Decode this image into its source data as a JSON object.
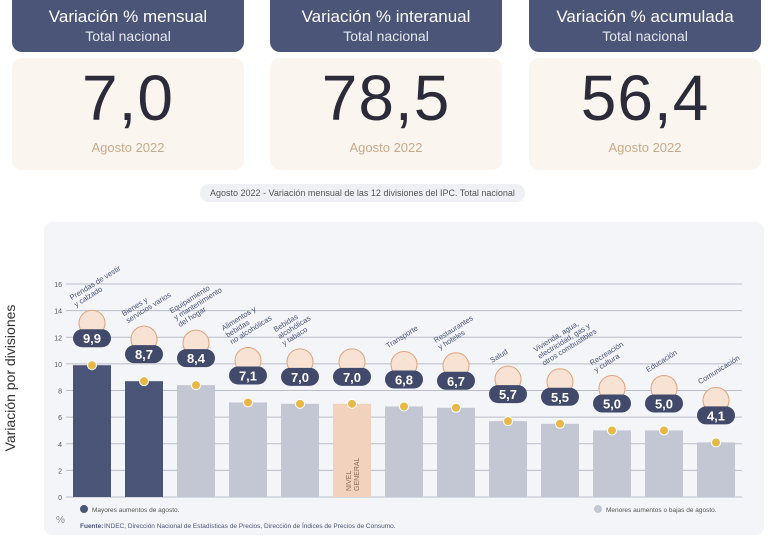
{
  "cards": [
    {
      "title": "Variación % mensual",
      "subtitle": "Total nacional",
      "value": "7,0",
      "period": "Agosto 2022"
    },
    {
      "title": "Variación % interanual",
      "subtitle": "Total nacional",
      "value": "78,5",
      "period": "Agosto 2022"
    },
    {
      "title": "Variación % acumulada",
      "subtitle": "Total nacional",
      "value": "56,4",
      "period": "Agosto 2022"
    }
  ],
  "chart_data": {
    "type": "bar",
    "title": "Agosto 2022 - Variación mensual de las 12 divisiones del IPC. Total nacional",
    "ylabel": "Variación por divisiones",
    "yunit": "%",
    "ylim": [
      0,
      16
    ],
    "yticks": [
      0,
      2,
      4,
      6,
      8,
      10,
      12,
      14,
      16
    ],
    "categories": [
      "Prendas de vestir y calzado",
      "Bienes y servicios varios",
      "Equipamiento y mantenimiento del hogar",
      "Alimentos y bebidas no alcohólicas",
      "Bebidas alcohólicas y tabaco",
      "Nivel general",
      "Transporte",
      "Restaurantes y hoteles",
      "Salud",
      "Vivienda, agua, electricidad, gas y otros combustibles",
      "Recreación y cultura",
      "Educación",
      "Comunicación"
    ],
    "values": [
      9.9,
      8.7,
      8.4,
      7.1,
      7.0,
      7.0,
      6.8,
      6.7,
      5.7,
      5.5,
      5.0,
      5.0,
      4.1
    ],
    "value_labels": [
      "9,9",
      "8,7",
      "8,4",
      "7,1",
      "7,0",
      "7,0",
      "6,8",
      "6,7",
      "5,7",
      "5,5",
      "5,0",
      "5,0",
      "4,1"
    ],
    "label_lines": [
      [
        "Prendas de vestir",
        "y calzado"
      ],
      [
        "Bienes y",
        "servicios varios"
      ],
      [
        "Equipamiento",
        "y mantenimiento",
        "del hogar"
      ],
      [
        "Alimentos y",
        "bebidas",
        "no alcohólicas"
      ],
      [
        "Bebidas",
        "alcohólicas",
        "y tabaco"
      ],
      [
        "NIVEL",
        "GENERAL"
      ],
      [
        "Transporte"
      ],
      [
        "Restaurantes",
        "y hoteles"
      ],
      [
        "Salud"
      ],
      [
        "Vivienda, agua,",
        "electricidad, gas y",
        "otros combustibles"
      ],
      [
        "Recreación",
        "y cultura"
      ],
      [
        "Educación"
      ],
      [
        "Comunicación"
      ]
    ],
    "groups": [
      "high",
      "high",
      "low",
      "low",
      "low",
      "general",
      "low",
      "low",
      "low",
      "low",
      "low",
      "low",
      "low"
    ],
    "colors": {
      "high": "#4a5578",
      "low": "#c3c7d3",
      "general": "#f2d2bc",
      "dot": "#e7b848",
      "badge": "#414a6b"
    },
    "legend": {
      "high": "Mayores aumentos de agosto.",
      "low": "Menores aumentos o bajas de agosto."
    },
    "source_label": "Fuente:",
    "source": "INDEC, Dirección Nacional de Estadísticas de Precios, Dirección de Índices de Precios de Consumo."
  }
}
